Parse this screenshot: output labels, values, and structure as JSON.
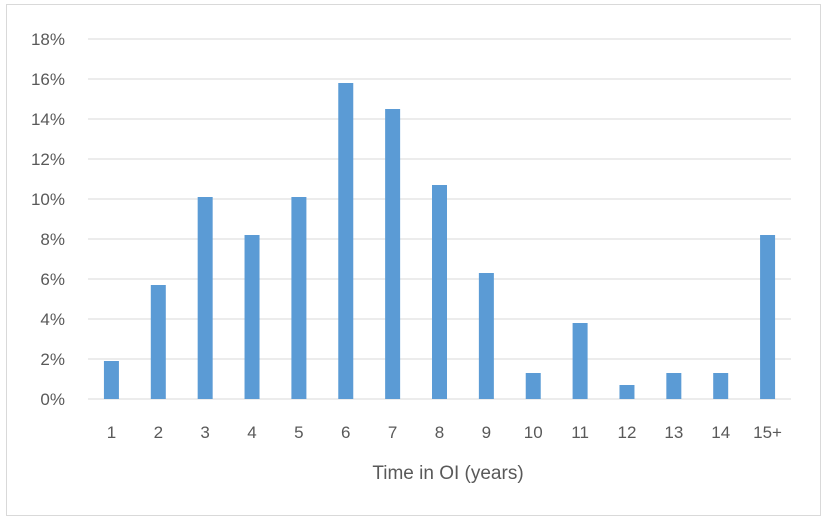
{
  "chart_data": {
    "type": "bar",
    "title": "",
    "xlabel": "Time in OI (years)",
    "ylabel": "",
    "categories": [
      "1",
      "2",
      "3",
      "4",
      "5",
      "6",
      "7",
      "8",
      "9",
      "10",
      "11",
      "12",
      "13",
      "14",
      "15+"
    ],
    "values": [
      1.9,
      5.7,
      10.1,
      8.2,
      10.1,
      15.8,
      14.5,
      10.7,
      6.3,
      1.3,
      3.8,
      0.7,
      1.3,
      1.3,
      8.2
    ],
    "ylim": [
      0,
      18
    ],
    "ytick_step": 2,
    "ytick_labels": [
      "0%",
      "2%",
      "4%",
      "6%",
      "8%",
      "10%",
      "12%",
      "14%",
      "16%",
      "18%"
    ],
    "grid": true,
    "legend": "none",
    "bar_color": "#5b9bd5",
    "grid_color": "#d9d9d9"
  }
}
